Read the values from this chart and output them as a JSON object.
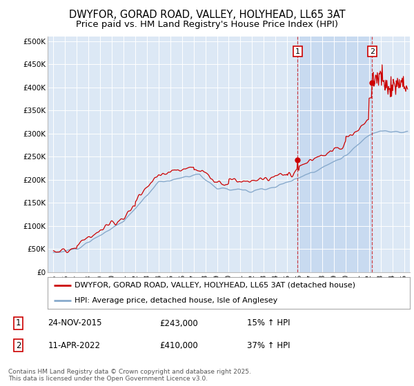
{
  "title": "DWYFOR, GORAD ROAD, VALLEY, HOLYHEAD, LL65 3AT",
  "subtitle": "Price paid vs. HM Land Registry's House Price Index (HPI)",
  "ylabel_ticks": [
    "£0",
    "£50K",
    "£100K",
    "£150K",
    "£200K",
    "£250K",
    "£300K",
    "£350K",
    "£400K",
    "£450K",
    "£500K"
  ],
  "ytick_values": [
    0,
    50000,
    100000,
    150000,
    200000,
    250000,
    300000,
    350000,
    400000,
    450000,
    500000
  ],
  "ylim": [
    0,
    510000
  ],
  "xlim_start": 1994.5,
  "xlim_end": 2025.5,
  "background_color": "#dce8f5",
  "highlight_color": "#c8daf0",
  "grid_color": "#ffffff",
  "red_line_color": "#cc0000",
  "blue_line_color": "#88aacc",
  "marker1_x": 2015.9,
  "marker2_x": 2022.27,
  "marker1_label": "1",
  "marker2_label": "2",
  "marker1_price": 243000,
  "marker2_price": 410000,
  "legend_red_label": "DWYFOR, GORAD ROAD, VALLEY, HOLYHEAD, LL65 3AT (detached house)",
  "legend_blue_label": "HPI: Average price, detached house, Isle of Anglesey",
  "table_row1": [
    "1",
    "24-NOV-2015",
    "£243,000",
    "15% ↑ HPI"
  ],
  "table_row2": [
    "2",
    "11-APR-2022",
    "£410,000",
    "37% ↑ HPI"
  ],
  "footnote": "Contains HM Land Registry data © Crown copyright and database right 2025.\nThis data is licensed under the Open Government Licence v3.0.",
  "title_fontsize": 10.5,
  "subtitle_fontsize": 9.5,
  "tick_fontsize": 7.5,
  "legend_fontsize": 8,
  "table_fontsize": 8.5,
  "footnote_fontsize": 6.5
}
